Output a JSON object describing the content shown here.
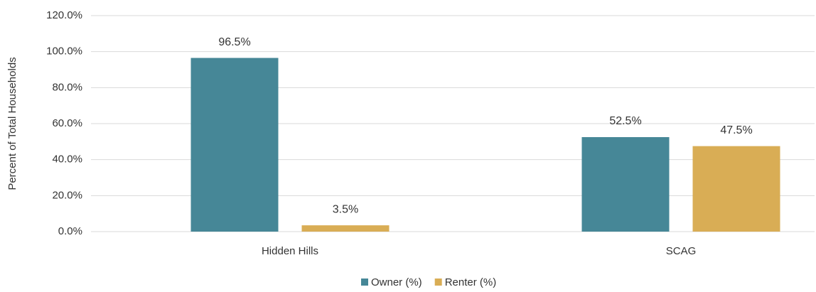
{
  "chart_data": {
    "type": "bar",
    "y_label": "Percent of Total Households",
    "categories": [
      "Hidden Hills",
      "SCAG"
    ],
    "series": [
      {
        "name": "Owner (%)",
        "color": "#468797",
        "values": [
          96.5,
          52.5
        ],
        "value_labels": [
          "96.5%",
          "52.5%"
        ]
      },
      {
        "name": "Renter (%)",
        "color": "#d9ad55",
        "values": [
          3.5,
          47.5
        ],
        "value_labels": [
          "3.5%",
          "47.5%"
        ]
      }
    ],
    "ylim": [
      0,
      120
    ],
    "yticks": [
      {
        "value": 0,
        "label": "0.0%"
      },
      {
        "value": 20,
        "label": "20.0%"
      },
      {
        "value": 40,
        "label": "40.0%"
      },
      {
        "value": 60,
        "label": "60.0%"
      },
      {
        "value": 80,
        "label": "80.0%"
      },
      {
        "value": 100,
        "label": "100.0%"
      },
      {
        "value": 120,
        "label": "120.0%"
      }
    ],
    "grid": true,
    "legend": "bottom"
  }
}
